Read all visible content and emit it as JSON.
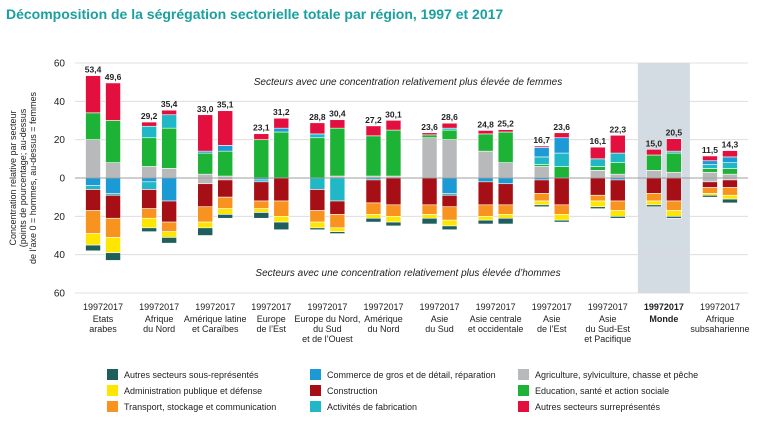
{
  "chart_data": {
    "type": "bar",
    "title": "Décomposition de la ségrégation sectorielle totale par région, 1997 et 2017",
    "ylabel_lines": [
      "Concentration relative par secteur",
      "(points de pourcentage; au-dessus",
      "de l’axe 0 = hommes, au-dessus = femmes"
    ],
    "ylim": [
      -60,
      60
    ],
    "yticks": [
      60,
      40,
      20,
      0,
      20,
      40,
      60
    ],
    "annotation_top": "Secteurs avec une concentration relativement plus élevée de femmes",
    "annotation_bottom": "Secteurs avec une concentration relativement plus élevée d’hommes",
    "years": [
      "1997",
      "2017"
    ],
    "highlight_region": "Monde",
    "segment_order_positive": [
      "agri",
      "edu",
      "fab",
      "commerce",
      "construction",
      "autres_sur"
    ],
    "segment_order_negative": [
      "commerce",
      "fab",
      "agri",
      "construction",
      "transport",
      "admin",
      "autres_sous"
    ],
    "series": [
      {
        "key": "autres_sous",
        "name": "Autres secteurs sous-représentés",
        "color": "#1e5e5c"
      },
      {
        "key": "admin",
        "name": "Administration publique et défense",
        "color": "#ffe600"
      },
      {
        "key": "transport",
        "name": "Transport, stockage et communication",
        "color": "#f7931e"
      },
      {
        "key": "commerce",
        "name": "Commerce de gros et de détail, réparation",
        "color": "#1b9ad6"
      },
      {
        "key": "construction",
        "name": "Construction",
        "color": "#a50f15"
      },
      {
        "key": "fab",
        "name": "Activités de fabrication",
        "color": "#20b7c7"
      },
      {
        "key": "agri",
        "name": "Agriculture, sylviculture, chasse et pêche",
        "color": "#b8b9ba"
      },
      {
        "key": "edu",
        "name": "Education, santé et action sociale",
        "color": "#1db336"
      },
      {
        "key": "autres_sur",
        "name": "Autres secteurs surreprésentés",
        "color": "#e3103f"
      }
    ],
    "regions": [
      {
        "name": [
          "Etats",
          "arabes"
        ],
        "bars": [
          {
            "year": "1997",
            "label": "53,4",
            "pos": {
              "agri": 20,
              "edu": 14,
              "autres_sur": 19.4
            },
            "neg": {
              "commerce": 4,
              "fab": 2,
              "construction": 11,
              "transport": 12,
              "admin": 6,
              "autres_sous": 3
            }
          },
          {
            "year": "2017",
            "label": "49,6",
            "pos": {
              "agri": 8,
              "edu": 22,
              "autres_sur": 19.6
            },
            "neg": {
              "commerce": 8,
              "fab": 1,
              "construction": 12,
              "transport": 10,
              "admin": 8,
              "autres_sous": 4
            }
          }
        ]
      },
      {
        "name": [
          "Afrique",
          "du Nord"
        ],
        "bars": [
          {
            "year": "1997",
            "label": "29,2",
            "pos": {
              "agri": 6,
              "fab": 6,
              "edu": 15,
              "autres_sur": 2.2
            },
            "neg": {
              "commerce": 2,
              "fab": 4,
              "construction": 10,
              "transport": 5,
              "admin": 5,
              "autres_sous": 2
            }
          },
          {
            "year": "2017",
            "label": "35,4",
            "pos": {
              "agri": 5,
              "fab": 7,
              "edu": 21,
              "autres_sur": 2.4
            },
            "neg": {
              "commerce": 12,
              "construction": 11,
              "transport": 5,
              "admin": 3,
              "autres_sous": 3
            }
          }
        ]
      },
      {
        "name": [
          "Amérique latine",
          "et Caraïbes"
        ],
        "bars": [
          {
            "year": "1997",
            "label": "33,0",
            "pos": {
              "agri": 2,
              "commerce": 1,
              "edu": 11,
              "autres_sur": 19
            },
            "neg": {
              "agri": 3,
              "construction": 12,
              "transport": 8,
              "admin": 3,
              "autres_sous": 4
            }
          },
          {
            "year": "2017",
            "label": "35,1",
            "pos": {
              "agri": 1,
              "commerce": 3,
              "edu": 13,
              "autres_sur": 18.1
            },
            "neg": {
              "agri": 1,
              "construction": 9,
              "transport": 6,
              "admin": 3,
              "autres_sous": 2
            }
          }
        ]
      },
      {
        "name": [
          "Europe",
          "de l’Est"
        ],
        "bars": [
          {
            "year": "1997",
            "label": "23,1",
            "pos": {
              "edu": 20,
              "autres_sur": 3.1
            },
            "neg": {
              "commerce": 1,
              "fab": 1,
              "construction": 10,
              "transport": 4,
              "admin": 2,
              "autres_sous": 3
            }
          },
          {
            "year": "2017",
            "label": "31,2",
            "pos": {
              "commerce": 2,
              "edu": 24,
              "autres_sur": 5.2
            },
            "neg": {
              "construction": 12,
              "transport": 8,
              "admin": 3,
              "autres_sous": 4
            }
          }
        ]
      },
      {
        "name": [
          "Europe du Nord,",
          "du Sud",
          "et de l’Ouest"
        ],
        "bars": [
          {
            "year": "1997",
            "label": "28,8",
            "pos": {
              "fab": 2,
              "edu": 21,
              "autres_sur": 5.8
            },
            "neg": {
              "fab": 6,
              "construction": 11,
              "transport": 6,
              "admin": 3,
              "autres_sous": 1
            }
          },
          {
            "year": "2017",
            "label": "30,4",
            "pos": {
              "agri": 1,
              "edu": 25,
              "autres_sur": 4.4
            },
            "neg": {
              "fab": 12,
              "construction": 7,
              "transport": 7,
              "admin": 2,
              "autres_sous": 1
            }
          }
        ]
      },
      {
        "name": [
          "Amérique",
          "du Nord"
        ],
        "bars": [
          {
            "year": "1997",
            "label": "27,2",
            "pos": {
              "agri": 1,
              "edu": 21,
              "autres_sur": 5.2
            },
            "neg": {
              "fab": 1,
              "construction": 12,
              "transport": 6,
              "admin": 2,
              "autres_sous": 2
            }
          },
          {
            "year": "2017",
            "label": "30,1",
            "pos": {
              "agri": 1,
              "edu": 24,
              "autres_sur": 5.1
            },
            "neg": {
              "construction": 14,
              "transport": 6,
              "admin": 3,
              "autres_sous": 2
            }
          }
        ]
      },
      {
        "name": [
          "Asie",
          "du Sud"
        ],
        "bars": [
          {
            "year": "1997",
            "label": "23,6",
            "pos": {
              "agri": 21,
              "edu": 1.5,
              "autres_sur": 1.1
            },
            "neg": {
              "construction": 14,
              "transport": 5,
              "admin": 2,
              "autres_sous": 3
            }
          },
          {
            "year": "2017",
            "label": "28,6",
            "pos": {
              "agri": 20,
              "fab": 1,
              "edu": 5,
              "autres_sur": 2.6
            },
            "neg": {
              "commerce": 8,
              "fab": 1,
              "construction": 6,
              "transport": 7,
              "admin": 3,
              "autres_sous": 2
            }
          }
        ]
      },
      {
        "name": [
          "Asie centrale",
          "et occidentale"
        ],
        "bars": [
          {
            "year": "1997",
            "label": "24,8",
            "pos": {
              "agri": 14,
              "edu": 9,
              "autres_sur": 1.8
            },
            "neg": {
              "commerce": 2,
              "construction": 12,
              "transport": 6,
              "admin": 2,
              "autres_sous": 2
            }
          },
          {
            "year": "2017",
            "label": "25,2",
            "pos": {
              "agri": 8,
              "edu": 16,
              "autres_sur": 1.2
            },
            "neg": {
              "commerce": 3,
              "construction": 11,
              "transport": 5,
              "admin": 2,
              "autres_sous": 3
            }
          }
        ]
      },
      {
        "name": [
          "Asie",
          "de l’Est"
        ],
        "bars": [
          {
            "year": "1997",
            "label": "16,7",
            "pos": {
              "agri": 6,
              "fab": 4,
              "commerce": 5,
              "edu": 1,
              "autres_sur": 0.7
            },
            "neg": {
              "commerce": 1,
              "construction": 7,
              "transport": 4,
              "admin": 2,
              "autres_sous": 1
            }
          },
          {
            "year": "2017",
            "label": "23,6",
            "pos": {
              "commerce": 8,
              "fab": 7,
              "edu": 6,
              "autres_sur": 2.6
            },
            "neg": {
              "construction": 14,
              "transport": 5,
              "admin": 3,
              "autres_sous": 1
            }
          }
        ]
      },
      {
        "name": [
          "Asie",
          "du Sud-Est",
          "et Pacifique"
        ],
        "bars": [
          {
            "year": "1997",
            "label": "16,1",
            "pos": {
              "agri": 4,
              "fab": 4,
              "edu": 2,
              "autres_sur": 6.1
            },
            "neg": {
              "construction": 9,
              "transport": 3,
              "admin": 3,
              "autres_sous": 1
            }
          },
          {
            "year": "2017",
            "label": "22,3",
            "pos": {
              "agri": 2,
              "fab": 5,
              "edu": 6,
              "autres_sur": 9.3
            },
            "neg": {
              "commerce": 1,
              "construction": 11,
              "transport": 5,
              "admin": 3,
              "autres_sous": 1
            }
          }
        ]
      },
      {
        "name": [
          "Monde"
        ],
        "bold": true,
        "bars": [
          {
            "year": "1997",
            "label": "15,0",
            "pos": {
              "agri": 4,
              "edu": 8,
              "autres_sur": 3
            },
            "neg": {
              "construction": 8,
              "transport": 4,
              "admin": 2,
              "autres_sous": 1
            }
          },
          {
            "year": "2017",
            "label": "20,5",
            "pos": {
              "agri": 3,
              "fab": 1,
              "edu": 10,
              "autres_sur": 6.5
            },
            "neg": {
              "construction": 12,
              "transport": 5,
              "admin": 3,
              "autres_sous": 1
            }
          }
        ]
      },
      {
        "name": [
          "Afrique",
          "subsaharienne"
        ],
        "bars": [
          {
            "year": "1997",
            "label": "11,5",
            "pos": {
              "agri": 3,
              "fab": 2,
              "commerce": 2,
              "edu": 2,
              "autres_sur": 2.5
            },
            "neg": {
              "agri": 2,
              "construction": 3,
              "transport": 3,
              "admin": 1,
              "autres_sous": 1
            }
          },
          {
            "year": "2017",
            "label": "14,3",
            "pos": {
              "agri": 2,
              "fab": 3,
              "commerce": 3,
              "edu": 3,
              "autres_sur": 3.3
            },
            "neg": {
              "agri": 1,
              "construction": 4,
              "transport": 4,
              "admin": 2,
              "autres_sous": 2
            }
          }
        ]
      }
    ]
  }
}
